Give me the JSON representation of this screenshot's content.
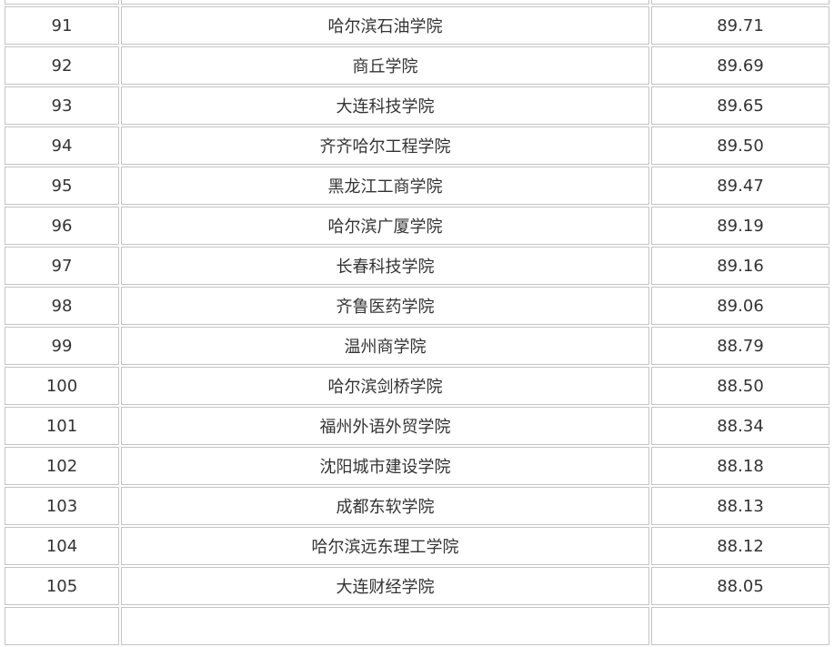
{
  "table": {
    "rows": [
      {
        "rank": "91",
        "name": "哈尔滨石油学院",
        "score": "89.71"
      },
      {
        "rank": "92",
        "name": "商丘学院",
        "score": "89.69"
      },
      {
        "rank": "93",
        "name": "大连科技学院",
        "score": "89.65"
      },
      {
        "rank": "94",
        "name": "齐齐哈尔工程学院",
        "score": "89.50"
      },
      {
        "rank": "95",
        "name": "黑龙江工商学院",
        "score": "89.47"
      },
      {
        "rank": "96",
        "name": "哈尔滨广厦学院",
        "score": "89.19"
      },
      {
        "rank": "97",
        "name": "长春科技学院",
        "score": "89.16"
      },
      {
        "rank": "98",
        "name": "齐鲁医药学院",
        "score": "89.06"
      },
      {
        "rank": "99",
        "name": "温州商学院",
        "score": "88.79"
      },
      {
        "rank": "100",
        "name": "哈尔滨剑桥学院",
        "score": "88.50"
      },
      {
        "rank": "101",
        "name": "福州外语外贸学院",
        "score": "88.34"
      },
      {
        "rank": "102",
        "name": "沈阳城市建设学院",
        "score": "88.18"
      },
      {
        "rank": "103",
        "name": "成都东软学院",
        "score": "88.13"
      },
      {
        "rank": "104",
        "name": "哈尔滨远东理工学院",
        "score": "88.12"
      },
      {
        "rank": "105",
        "name": "大连财经学院",
        "score": "88.05"
      }
    ]
  }
}
